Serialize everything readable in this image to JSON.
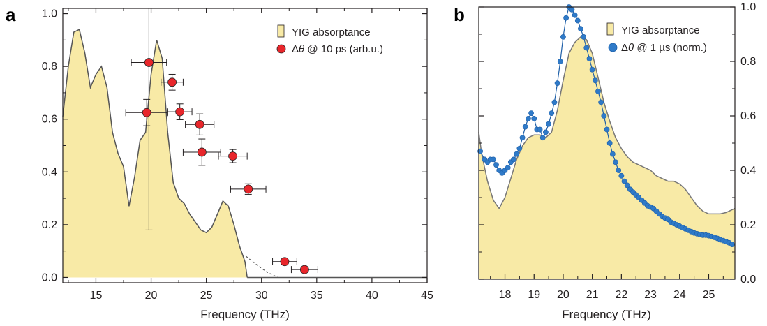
{
  "chart_data": [
    {
      "panel": "a",
      "type": "area",
      "xlabel": "Frequency (THz)",
      "ylabel": "",
      "xlim": [
        12,
        45
      ],
      "ylim": [
        -0.02,
        1.02
      ],
      "x_ticks": [
        15,
        20,
        25,
        30,
        35,
        40,
        45
      ],
      "y_ticks": [
        0.0,
        0.2,
        0.4,
        0.6,
        0.8,
        1.0
      ],
      "legend_position": "top-right",
      "legend": [
        {
          "label_plain": "YIG absorptance",
          "marker": "yellow-rect"
        },
        {
          "label_pre": "Δ",
          "label_italic": "θ",
          "label_post": " @ 10 ps (arb.u.)",
          "marker": "red-circle"
        }
      ],
      "series": [
        {
          "name": "YIG absorptance",
          "style": "filled-area",
          "x": [
            12.0,
            12.5,
            13.0,
            13.5,
            14.0,
            14.5,
            15.0,
            15.5,
            16.0,
            16.5,
            17.0,
            17.5,
            18.0,
            18.5,
            19.0,
            19.5,
            20.0,
            20.5,
            21.0,
            21.5,
            22.0,
            22.5,
            23.0,
            23.5,
            24.0,
            24.5,
            25.0,
            25.5,
            26.0,
            26.5,
            27.0,
            27.5,
            28.0,
            28.5,
            28.7
          ],
          "y": [
            0.61,
            0.8,
            0.93,
            0.94,
            0.85,
            0.72,
            0.77,
            0.8,
            0.72,
            0.55,
            0.47,
            0.42,
            0.27,
            0.38,
            0.52,
            0.55,
            0.77,
            0.9,
            0.83,
            0.55,
            0.36,
            0.3,
            0.28,
            0.24,
            0.21,
            0.18,
            0.17,
            0.19,
            0.24,
            0.29,
            0.27,
            0.2,
            0.12,
            0.06,
            0.0
          ],
          "baseline_after": {
            "x": [
              28.7,
              45
            ],
            "y": 0.0
          }
        },
        {
          "name": "dashed extension",
          "style": "dashed",
          "x": [
            28.6,
            29.5,
            30.5,
            31.0,
            31.5
          ],
          "y": [
            0.08,
            0.05,
            0.02,
            0.01,
            0.0
          ]
        },
        {
          "name": "Δθ @ 10 ps (arb.u.)",
          "style": "points-with-errorbars",
          "points": [
            {
              "x": 19.8,
              "y": 0.815,
              "xerr": 1.6,
              "yerr": 0.0
            },
            {
              "x": 19.6,
              "y": 0.625,
              "xerr": 1.9,
              "yerr": 0.05
            },
            {
              "x": 21.9,
              "y": 0.74,
              "xerr": 1.0,
              "yerr": 0.03
            },
            {
              "x": 22.6,
              "y": 0.628,
              "xerr": 1.1,
              "yerr": 0.03
            },
            {
              "x": 24.4,
              "y": 0.58,
              "xerr": 1.3,
              "yerr": 0.04
            },
            {
              "x": 24.6,
              "y": 0.475,
              "xerr": 1.7,
              "yerr": 0.05
            },
            {
              "x": 27.4,
              "y": 0.46,
              "xerr": 1.3,
              "yerr": 0.025
            },
            {
              "x": 28.8,
              "y": 0.335,
              "xerr": 1.6,
              "yerr": 0.02
            },
            {
              "x": 32.1,
              "y": 0.06,
              "xerr": 1.1,
              "yerr": 0.01
            },
            {
              "x": 33.9,
              "y": 0.03,
              "xerr": 1.2,
              "yerr": 0.01
            }
          ]
        },
        {
          "name": "vertical reference",
          "style": "thin-vertical-bar",
          "x": 19.8,
          "y_range": [
            0.18,
            1.02
          ],
          "cap_y": 0.18
        }
      ]
    },
    {
      "panel": "b",
      "type": "area",
      "xlabel": "Frequency (THz)",
      "ylabel": "",
      "xlim": [
        17.1,
        25.9
      ],
      "ylim": [
        0.0,
        1.0
      ],
      "x_ticks": [
        18,
        19,
        20,
        21,
        22,
        23,
        24,
        25
      ],
      "y_ticks": [
        0.0,
        0.2,
        0.4,
        0.6,
        0.8,
        1.0
      ],
      "y_axis_side": "right",
      "legend_position": "top-right",
      "legend": [
        {
          "label_plain": "YIG absorptance",
          "marker": "yellow-rect"
        },
        {
          "label_pre": "Δ",
          "label_italic": "θ",
          "label_post": " @ 1 µs (norm.)",
          "marker": "blue-circle"
        }
      ],
      "series": [
        {
          "name": "YIG absorptance",
          "style": "filled-area",
          "x": [
            17.1,
            17.2,
            17.4,
            17.6,
            17.8,
            18.0,
            18.2,
            18.4,
            18.6,
            18.8,
            19.0,
            19.2,
            19.4,
            19.6,
            19.8,
            20.0,
            20.2,
            20.4,
            20.6,
            20.8,
            21.0,
            21.2,
            21.4,
            21.6,
            21.8,
            22.0,
            22.2,
            22.4,
            22.6,
            22.8,
            23.0,
            23.2,
            23.4,
            23.6,
            23.8,
            24.0,
            24.2,
            24.4,
            24.6,
            24.8,
            25.0,
            25.2,
            25.4,
            25.6,
            25.9
          ],
          "y": [
            0.54,
            0.46,
            0.36,
            0.29,
            0.26,
            0.3,
            0.37,
            0.44,
            0.49,
            0.52,
            0.53,
            0.53,
            0.52,
            0.54,
            0.62,
            0.73,
            0.83,
            0.87,
            0.89,
            0.88,
            0.83,
            0.74,
            0.65,
            0.58,
            0.52,
            0.48,
            0.45,
            0.43,
            0.42,
            0.41,
            0.4,
            0.38,
            0.37,
            0.36,
            0.36,
            0.35,
            0.33,
            0.3,
            0.27,
            0.25,
            0.24,
            0.24,
            0.24,
            0.245,
            0.26
          ]
        },
        {
          "name": "Δθ @ 1 µs (norm.)",
          "style": "line-with-circles",
          "x": [
            17.15,
            17.3,
            17.4,
            17.5,
            17.6,
            17.7,
            17.8,
            17.9,
            18.0,
            18.1,
            18.2,
            18.3,
            18.4,
            18.5,
            18.6,
            18.7,
            18.8,
            18.9,
            19.0,
            19.1,
            19.2,
            19.3,
            19.4,
            19.5,
            19.6,
            19.7,
            19.8,
            19.9,
            20.0,
            20.1,
            20.2,
            20.3,
            20.4,
            20.5,
            20.6,
            20.7,
            20.8,
            20.9,
            21.0,
            21.1,
            21.2,
            21.3,
            21.4,
            21.5,
            21.6,
            21.7,
            21.8,
            21.9,
            22.0,
            22.1,
            22.2,
            22.3,
            22.4,
            22.5,
            22.6,
            22.7,
            22.8,
            22.9,
            23.0,
            23.1,
            23.2,
            23.3,
            23.4,
            23.5,
            23.6,
            23.7,
            23.8,
            23.9,
            24.0,
            24.1,
            24.2,
            24.3,
            24.4,
            24.5,
            24.6,
            24.7,
            24.8,
            24.9,
            25.0,
            25.1,
            25.2,
            25.3,
            25.4,
            25.5,
            25.6,
            25.7,
            25.8
          ],
          "y": [
            0.47,
            0.44,
            0.43,
            0.44,
            0.44,
            0.42,
            0.4,
            0.39,
            0.4,
            0.41,
            0.43,
            0.44,
            0.46,
            0.48,
            0.52,
            0.56,
            0.59,
            0.61,
            0.59,
            0.55,
            0.55,
            0.52,
            0.54,
            0.57,
            0.61,
            0.65,
            0.72,
            0.8,
            0.89,
            0.96,
            1.0,
            0.99,
            0.97,
            0.95,
            0.92,
            0.89,
            0.85,
            0.81,
            0.77,
            0.73,
            0.69,
            0.65,
            0.6,
            0.55,
            0.5,
            0.46,
            0.43,
            0.4,
            0.38,
            0.36,
            0.345,
            0.33,
            0.32,
            0.31,
            0.3,
            0.29,
            0.28,
            0.27,
            0.265,
            0.26,
            0.25,
            0.24,
            0.23,
            0.225,
            0.22,
            0.21,
            0.205,
            0.2,
            0.195,
            0.19,
            0.185,
            0.18,
            0.175,
            0.17,
            0.167,
            0.164,
            0.162,
            0.162,
            0.16,
            0.157,
            0.154,
            0.15,
            0.145,
            0.142,
            0.138,
            0.134,
            0.128
          ]
        }
      ]
    }
  ],
  "panels": {
    "a": {
      "label": "a",
      "ytick_labels": [
        "0.0",
        "0.2",
        "0.4",
        "0.6",
        "0.8",
        "1.0"
      ],
      "xtick_labels": [
        "15",
        "20",
        "25",
        "30",
        "35",
        "40",
        "45"
      ]
    },
    "b": {
      "label": "b",
      "ytick_labels": [
        "0.0",
        "0.2",
        "0.4",
        "0.6",
        "0.8",
        "1.0"
      ],
      "xtick_labels": [
        "18",
        "19",
        "20",
        "21",
        "22",
        "23",
        "24",
        "25"
      ]
    }
  },
  "colors": {
    "fill_yellow": "#f8eaa6",
    "curve_dark": "#555555",
    "marker_red": "#e8262b",
    "marker_blue": "#2f7ac8",
    "line_blue": "#1e5fa8",
    "axis": "#231f20"
  }
}
